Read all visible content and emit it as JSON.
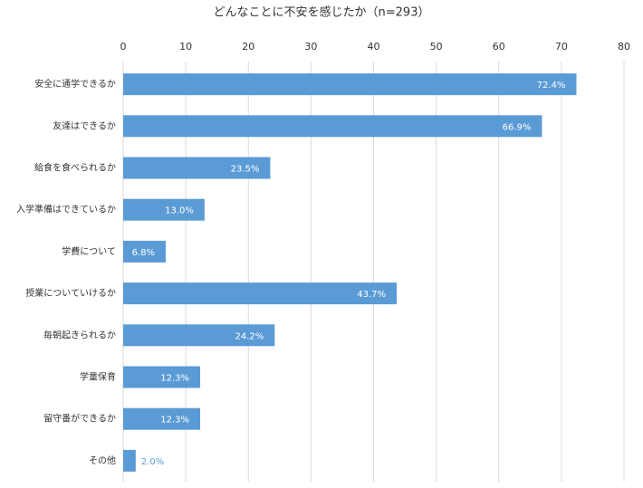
{
  "chart_data": {
    "type": "bar",
    "orientation": "horizontal",
    "title": "どんなことに不安を感じたか（n=293）",
    "categories": [
      "安全に通学できるか",
      "友達はできるか",
      "給食を食べられるか",
      "入学準備はできているか",
      "学費について",
      "授業についていけるか",
      "毎朝起きられるか",
      "学童保育",
      "留守番ができるか",
      "その他"
    ],
    "values": [
      72.4,
      66.9,
      23.5,
      13.0,
      6.8,
      43.7,
      24.2,
      12.3,
      12.3,
      2.0
    ],
    "value_labels": [
      "72.4%",
      "66.9%",
      "23.5%",
      "13.0%",
      "6.8%",
      "43.7%",
      "24.2%",
      "12.3%",
      "12.3%",
      "2.0%"
    ],
    "color": "#5b9bd5",
    "xlim": [
      0,
      80
    ],
    "xticks": [
      0,
      10,
      20,
      30,
      40,
      50,
      60,
      70,
      80
    ],
    "grid": true
  }
}
